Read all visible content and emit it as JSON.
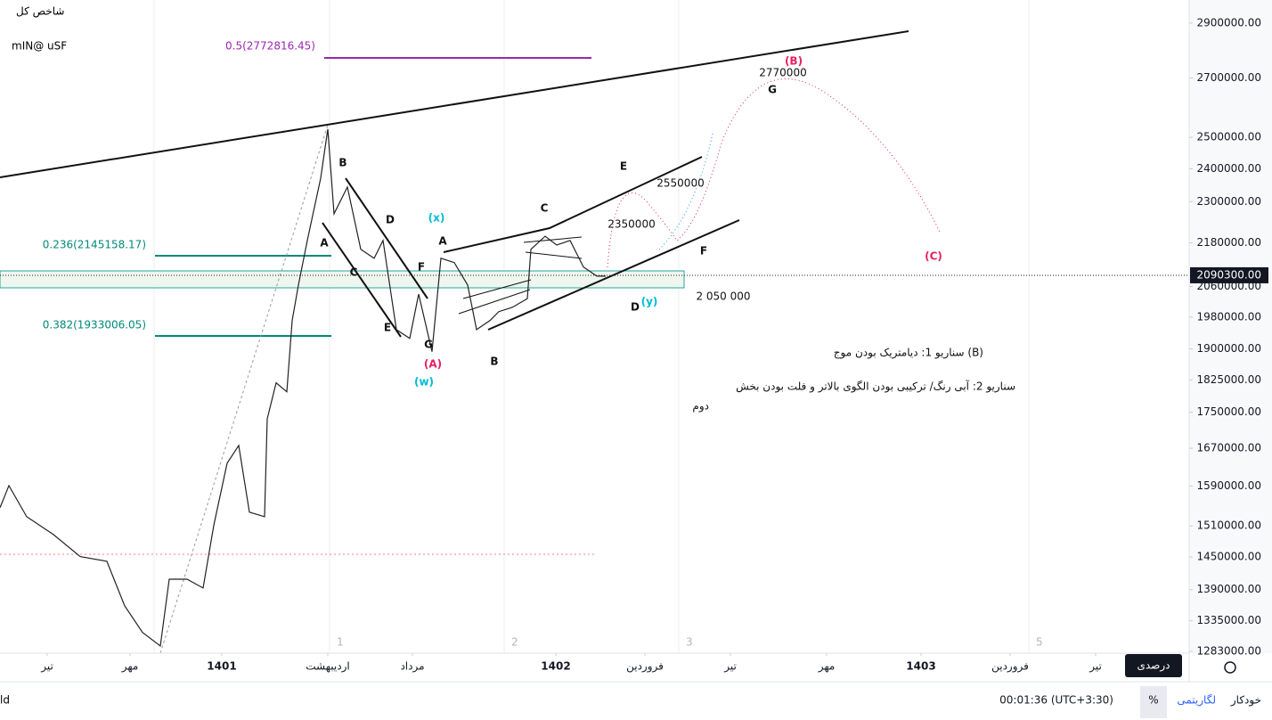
{
  "chart_data": {
    "type": "line",
    "title": "شاخص کل",
    "subtitle": "mIN@ uSF",
    "log_scale": true,
    "series": [
      {
        "name": "شاخص کل",
        "color": "#222222",
        "x": [
          0,
          10,
          30,
          60,
          90,
          120,
          140,
          160,
          180,
          190,
          210,
          228,
          240,
          255,
          268,
          280,
          297,
          300,
          310,
          322,
          328,
          335,
          345,
          360,
          368,
          375,
          390,
          405,
          420,
          430,
          445,
          460,
          470,
          485,
          495,
          510,
          525,
          535,
          550,
          560,
          575,
          592,
          596,
          612,
          625,
          640,
          655,
          670,
          680
        ],
        "values": [
          1546000,
          1591000,
          1528000,
          1493000,
          1451000,
          1442000,
          1361000,
          1315000,
          1292000,
          1409000,
          1409000,
          1393000,
          1511000,
          1638000,
          1676000,
          1537000,
          1528000,
          1735000,
          1818000,
          1797000,
          1971000,
          2064000,
          2187000,
          2371000,
          2527000,
          2264000,
          2344000,
          2162000,
          2137000,
          2187000,
          1948000,
          1926000,
          2040000,
          1893000,
          2137000,
          2125000,
          2064000,
          1948000,
          1971000,
          1994000,
          2005000,
          2028000,
          2162000,
          2199000,
          2174000,
          2187000,
          2113000,
          2088000,
          2088000
        ]
      }
    ],
    "xlim": [
      0,
      1335
    ],
    "ylim": [
      1280000,
      2988000
    ],
    "xticks": [
      {
        "value": 53,
        "label": "تیر"
      },
      {
        "value": 146,
        "label": "مهر"
      },
      {
        "value": 249,
        "label": "1401"
      },
      {
        "value": 368,
        "label": "اردیبهشت"
      },
      {
        "value": 463,
        "label": "مرداد"
      },
      {
        "value": 624,
        "label": "1402"
      },
      {
        "value": 724,
        "label": "فروردین"
      },
      {
        "value": 820,
        "label": "تیر"
      },
      {
        "value": 928,
        "label": "مهر"
      },
      {
        "value": 1034,
        "label": "1403"
      },
      {
        "value": 1134,
        "label": "فروردین"
      },
      {
        "value": 1230,
        "label": "تیر"
      }
    ],
    "yticks": [
      {
        "value": 2900000,
        "label": "2900000.00"
      },
      {
        "value": 2700000,
        "label": "2700000.00"
      },
      {
        "value": 2500000,
        "label": "2500000.00"
      },
      {
        "value": 2400000,
        "label": "2400000.00"
      },
      {
        "value": 2300000,
        "label": "2300000.00"
      },
      {
        "value": 2180000,
        "label": "2180000.00"
      },
      {
        "value": 2060000,
        "label": "2060000.00"
      },
      {
        "value": 1980000,
        "label": "1980000.00"
      },
      {
        "value": 1900000,
        "label": "1900000.00"
      },
      {
        "value": 1825000,
        "label": "1825000.00"
      },
      {
        "value": 1750000,
        "label": "1750000.00"
      },
      {
        "value": 1670000,
        "label": "1670000.00"
      },
      {
        "value": 1590000,
        "label": "1590000.00"
      },
      {
        "value": 1510000,
        "label": "1510000.00"
      },
      {
        "value": 1450000,
        "label": "1450000.00"
      },
      {
        "value": 1390000,
        "label": "1390000.00"
      },
      {
        "value": 1335000,
        "label": "1335000.00"
      },
      {
        "value": 1283000,
        "label": "1283000.00"
      }
    ],
    "last_price": {
      "value": 2090300,
      "label": "2090300.00"
    },
    "annotations": [
      {
        "text": "0.5(2772816.45)",
        "color": "#9c27b0"
      },
      {
        "text": "0.236(2145158.17)",
        "color": "#00897b"
      },
      {
        "text": "0.382(1933006.05)",
        "color": "#00897b"
      },
      {
        "text": "B",
        "color": "#111111"
      },
      {
        "text": "A",
        "color": "#111111"
      },
      {
        "text": "C",
        "color": "#111111"
      },
      {
        "text": "D",
        "color": "#111111"
      },
      {
        "text": "E",
        "color": "#111111"
      },
      {
        "text": "F",
        "color": "#111111"
      },
      {
        "text": "G",
        "color": "#111111"
      },
      {
        "text": "(A)",
        "color": "#e91e63"
      },
      {
        "text": "(w)",
        "color": "#00bcd4"
      },
      {
        "text": "(x)",
        "color": "#00bcd4"
      },
      {
        "text": "A",
        "color": "#111111"
      },
      {
        "text": "B",
        "color": "#111111"
      },
      {
        "text": "C",
        "color": "#111111"
      },
      {
        "text": "E",
        "color": "#111111"
      },
      {
        "text": "F",
        "color": "#111111"
      },
      {
        "text": "D",
        "color": "#111111"
      },
      {
        "text": "(y)",
        "color": "#00bcd4"
      },
      {
        "text": "G",
        "color": "#111111"
      },
      {
        "text": "(B)",
        "color": "#e91e63"
      },
      {
        "text": "(C)",
        "color": "#e91e63"
      },
      {
        "text": "2770000",
        "color": "#111111"
      },
      {
        "text": "2550000",
        "color": "#111111"
      },
      {
        "text": "2350000",
        "color": "#111111"
      },
      {
        "text": "2 050 000",
        "color": "#111111"
      },
      {
        "text": "سناریو 1: دیامتریک  بودن موج  (B)",
        "color": "#111111"
      },
      {
        "text": "سناریو 2: آبی رنگ/ ترکیبی بودن الگوی بالاتر و فلت بودن بخش",
        "color": "#111111"
      },
      {
        "text": "دوم",
        "color": "#111111"
      }
    ],
    "panes": [
      "1",
      "2",
      "3",
      "5"
    ]
  },
  "ui": {
    "left": "ld",
    "time": "00:01:36 (UTC+3:30)",
    "percent": "%",
    "log": "لگاریتمی",
    "auto": "خودکار",
    "tooltip": "درصدی"
  }
}
